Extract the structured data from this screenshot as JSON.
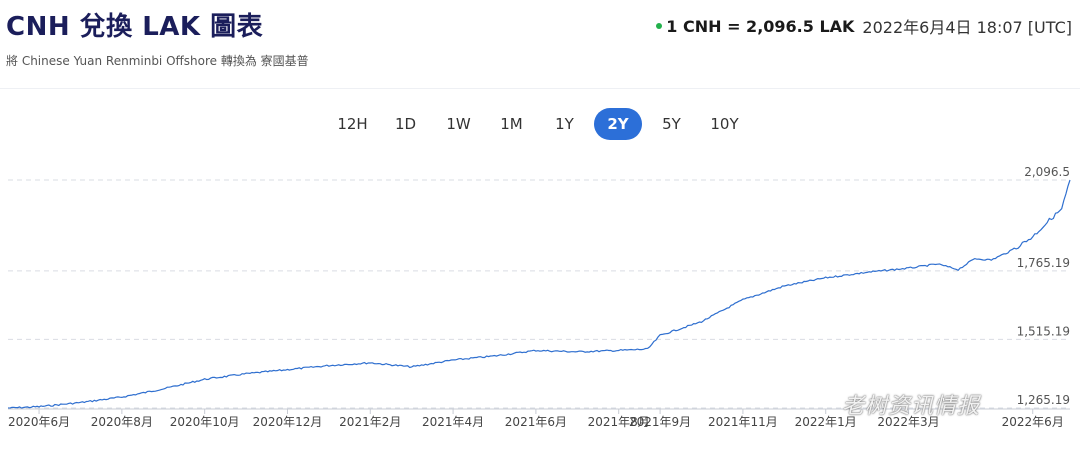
{
  "header": {
    "title": "CNH 兌換 LAK 圖表",
    "subtitle": "將 Chinese Yuan Renminbi Offshore 轉換為 寮國基普",
    "rate": "1 CNH = 2,096.5 LAK",
    "timestamp": "2022年6月4日 18:07 [UTC]",
    "status_color": "#22b14c"
  },
  "tabs": [
    {
      "label": "12H",
      "active": false
    },
    {
      "label": "1D",
      "active": false
    },
    {
      "label": "1W",
      "active": false
    },
    {
      "label": "1M",
      "active": false
    },
    {
      "label": "1Y",
      "active": false
    },
    {
      "label": "2Y",
      "active": true
    },
    {
      "label": "5Y",
      "active": false
    },
    {
      "label": "10Y",
      "active": false
    }
  ],
  "watermark": "老树资讯情报",
  "chart_data": {
    "type": "line",
    "line_color": "#2f6fcf",
    "accent_color": "#2c6fd8",
    "ylim": [
      1265.19,
      2096.5
    ],
    "y_ticks": [
      {
        "value": 2096.5,
        "label": "2,096.5"
      },
      {
        "value": 1765.19,
        "label": "1,765.19"
      },
      {
        "value": 1515.19,
        "label": "1,515.19"
      },
      {
        "value": 1265.19,
        "label": "1,265.19"
      }
    ],
    "x_tick_labels": [
      "2020年6月",
      "2020年8月",
      "2020年10月",
      "2020年12月",
      "2021年2月",
      "2021年4月",
      "2021年6月",
      "2021年8月",
      "2021年9月",
      "2021年11月",
      "2022年1月",
      "2022年3月",
      "2022年6月"
    ],
    "x_tick_months": [
      0,
      2,
      4,
      6,
      8,
      10,
      12,
      14,
      15,
      17,
      19,
      21,
      24
    ],
    "x_range_months": [
      -0.75,
      24.9
    ],
    "grid": "horizontal-dashed",
    "series": [
      {
        "x": [
          -0.75,
          0,
          1,
          2,
          3,
          4,
          5,
          6,
          7,
          8,
          9,
          10,
          11,
          12,
          13,
          14,
          14.7,
          15,
          16,
          17,
          18,
          19,
          20,
          21,
          21.7,
          22.2,
          22.6,
          23,
          23.5,
          24,
          24.4,
          24.7,
          24.9
        ],
        "y": [
          1265,
          1270,
          1285,
          1305,
          1335,
          1370,
          1390,
          1405,
          1420,
          1430,
          1415,
          1440,
          1455,
          1475,
          1470,
          1475,
          1480,
          1530,
          1580,
          1660,
          1710,
          1740,
          1760,
          1775,
          1790,
          1770,
          1810,
          1805,
          1840,
          1890,
          1950,
          1990,
          2096.5
        ]
      }
    ]
  }
}
